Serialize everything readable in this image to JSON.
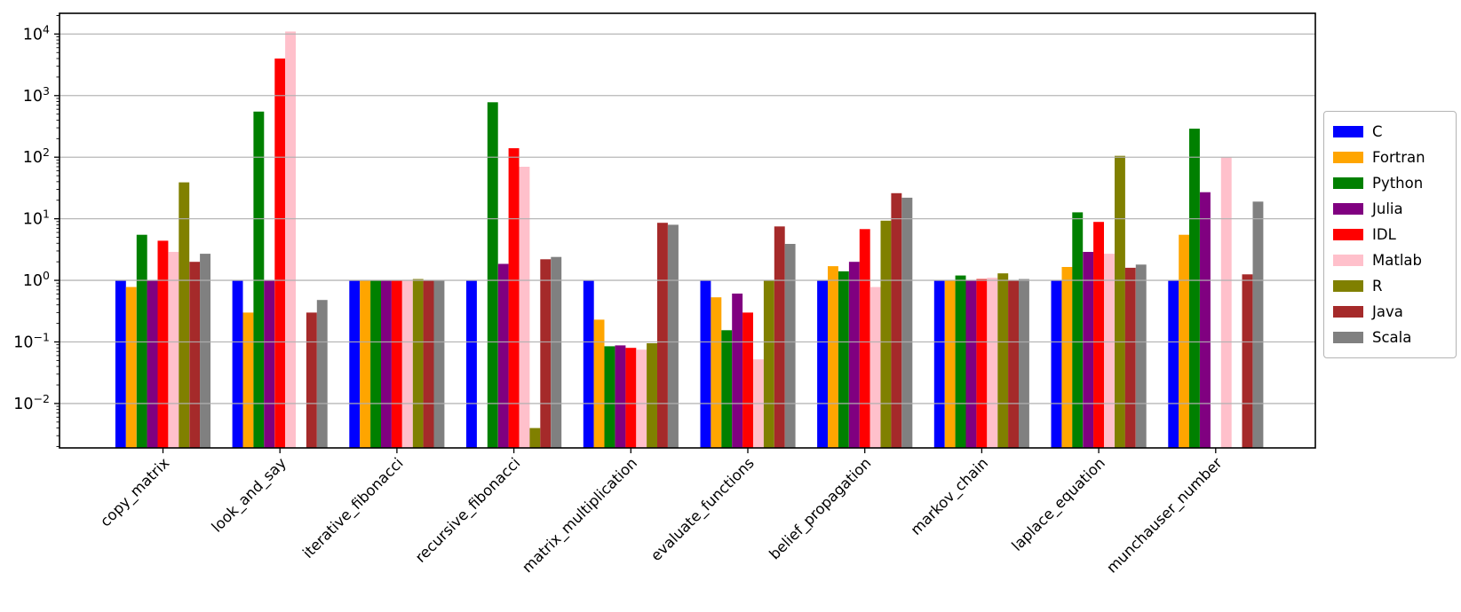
{
  "figure": {
    "background": "#ffffff",
    "plot_border_color": "#000000",
    "grid_color": "#b0b0b0",
    "text_color": "#000000",
    "legend_border_color": "#b4b4b4"
  },
  "chart_data": {
    "type": "bar",
    "yscale": "log",
    "title": "",
    "xlabel": "",
    "ylabel": "",
    "grid": true,
    "legend_position": "right-outside",
    "ylim": [
      0.0019,
      21700
    ],
    "y_tick_exponents": [
      4,
      3,
      2,
      1,
      0,
      -1,
      -2
    ],
    "categories": [
      "copy_matrix",
      "look_and_say",
      "iterative_fibonacci",
      "recursive_fibonacci",
      "matrix_multiplication",
      "evaluate_functions",
      "belief_propagation",
      "markov_chain",
      "laplace_equation",
      "munchauser_number"
    ],
    "series": [
      {
        "name": "C",
        "color": "#0000ff",
        "values": [
          1.0,
          1.0,
          1.0,
          1.0,
          1.0,
          1.0,
          1.0,
          1.0,
          1.0,
          1.0
        ]
      },
      {
        "name": "Fortran",
        "color": "#ffa500",
        "values": [
          0.78,
          0.3,
          1.0,
          null,
          0.23,
          0.53,
          1.7,
          1.0,
          1.65,
          5.5
        ]
      },
      {
        "name": "Python",
        "color": "#008000",
        "values": [
          5.5,
          550,
          1.0,
          780,
          0.085,
          0.155,
          1.4,
          1.2,
          12.7,
          290
        ]
      },
      {
        "name": "Julia",
        "color": "#800080",
        "values": [
          1.0,
          1.0,
          1.0,
          1.85,
          0.088,
          0.61,
          2.0,
          1.0,
          2.9,
          27
        ]
      },
      {
        "name": "IDL",
        "color": "#ff0000",
        "values": [
          4.4,
          4000,
          1.0,
          140,
          0.08,
          0.3,
          6.8,
          1.05,
          8.9,
          null
        ]
      },
      {
        "name": "Matlab",
        "color": "#ffc0cb",
        "values": [
          2.9,
          11000,
          1.0,
          70,
          0.075,
          0.052,
          0.78,
          1.1,
          2.7,
          100
        ]
      },
      {
        "name": "R",
        "color": "#808000",
        "values": [
          39,
          null,
          1.05,
          0.004,
          0.095,
          1.0,
          9.3,
          1.3,
          105,
          null
        ]
      },
      {
        "name": "Java",
        "color": "#a52a2a",
        "values": [
          2.0,
          0.3,
          1.0,
          2.2,
          8.6,
          7.5,
          26,
          1.0,
          1.6,
          1.25
        ]
      },
      {
        "name": "Scala",
        "color": "#808080",
        "values": [
          2.7,
          0.48,
          1.0,
          2.4,
          8.0,
          3.9,
          22,
          1.05,
          1.8,
          19
        ]
      }
    ]
  }
}
